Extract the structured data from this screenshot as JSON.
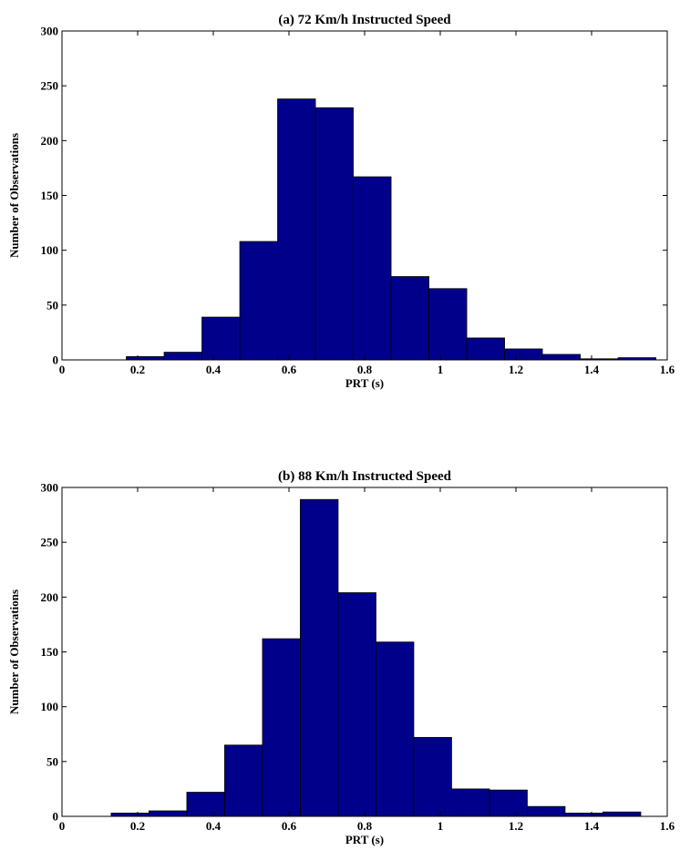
{
  "chart_data": [
    {
      "type": "bar",
      "title": "(a) 72 Km/h Instructed Speed",
      "xlabel": "PRT (s)",
      "ylabel": "Number of Observations",
      "xlim": [
        0,
        1.6
      ],
      "ylim": [
        0,
        300
      ],
      "xticks": [
        "0",
        "0.2",
        "0.4",
        "0.6",
        "0.8",
        "1",
        "1.2",
        "1.4",
        "1.6"
      ],
      "yticks": [
        "0",
        "50",
        "100",
        "150",
        "200",
        "250",
        "300"
      ],
      "grid": false,
      "bar_color": "#00008b",
      "bins": [
        {
          "x0": 0.17,
          "x1": 0.27,
          "value": 3
        },
        {
          "x0": 0.27,
          "x1": 0.37,
          "value": 7
        },
        {
          "x0": 0.37,
          "x1": 0.47,
          "value": 39
        },
        {
          "x0": 0.47,
          "x1": 0.57,
          "value": 108
        },
        {
          "x0": 0.57,
          "x1": 0.67,
          "value": 238
        },
        {
          "x0": 0.67,
          "x1": 0.77,
          "value": 230
        },
        {
          "x0": 0.77,
          "x1": 0.87,
          "value": 167
        },
        {
          "x0": 0.87,
          "x1": 0.97,
          "value": 76
        },
        {
          "x0": 0.97,
          "x1": 1.07,
          "value": 65
        },
        {
          "x0": 1.07,
          "x1": 1.17,
          "value": 20
        },
        {
          "x0": 1.17,
          "x1": 1.27,
          "value": 10
        },
        {
          "x0": 1.27,
          "x1": 1.37,
          "value": 5
        },
        {
          "x0": 1.37,
          "x1": 1.47,
          "value": 1
        },
        {
          "x0": 1.47,
          "x1": 1.57,
          "value": 2
        }
      ]
    },
    {
      "type": "bar",
      "title": "(b) 88 Km/h Instructed Speed",
      "xlabel": "PRT (s)",
      "ylabel": "Number of Observations",
      "xlim": [
        0,
        1.6
      ],
      "ylim": [
        0,
        300
      ],
      "xticks": [
        "0",
        "0.2",
        "0.4",
        "0.6",
        "0.8",
        "1",
        "1.2",
        "1.4",
        "1.6"
      ],
      "yticks": [
        "0",
        "50",
        "100",
        "150",
        "200",
        "250",
        "300"
      ],
      "grid": false,
      "bar_color": "#00008b",
      "bins": [
        {
          "x0": 0.13,
          "x1": 0.23,
          "value": 3
        },
        {
          "x0": 0.23,
          "x1": 0.33,
          "value": 5
        },
        {
          "x0": 0.33,
          "x1": 0.43,
          "value": 22
        },
        {
          "x0": 0.43,
          "x1": 0.53,
          "value": 65
        },
        {
          "x0": 0.53,
          "x1": 0.63,
          "value": 162
        },
        {
          "x0": 0.63,
          "x1": 0.73,
          "value": 289
        },
        {
          "x0": 0.73,
          "x1": 0.83,
          "value": 204
        },
        {
          "x0": 0.83,
          "x1": 0.93,
          "value": 159
        },
        {
          "x0": 0.93,
          "x1": 1.03,
          "value": 72
        },
        {
          "x0": 1.03,
          "x1": 1.13,
          "value": 25
        },
        {
          "x0": 1.13,
          "x1": 1.23,
          "value": 24
        },
        {
          "x0": 1.23,
          "x1": 1.33,
          "value": 9
        },
        {
          "x0": 1.33,
          "x1": 1.43,
          "value": 3
        },
        {
          "x0": 1.43,
          "x1": 1.53,
          "value": 4
        }
      ]
    }
  ]
}
